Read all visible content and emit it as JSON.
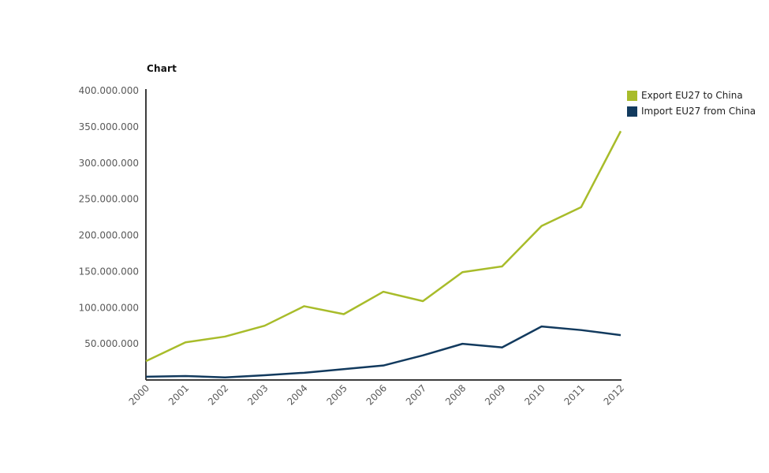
{
  "page": {
    "background": "#ffffff"
  },
  "header": {
    "title": "Chart"
  },
  "legend": {
    "items": [
      {
        "label": "Export EU27 to China",
        "color": "#a8bc2a"
      },
      {
        "label": "Import EU27 from China",
        "color": "#123a5e"
      }
    ]
  },
  "chart_data": {
    "type": "line",
    "title": "Chart",
    "xlabel": "",
    "ylabel": "",
    "categories": [
      "2000",
      "2001",
      "2002",
      "2003",
      "2004",
      "2005",
      "2006",
      "2007",
      "2008",
      "2009",
      "2010",
      "2011",
      "2012"
    ],
    "series": [
      {
        "name": "Export EU27 to China",
        "color": "#a8bc2a",
        "values": [
          26000000,
          52000000,
          60000000,
          75000000,
          102000000,
          91000000,
          122000000,
          109000000,
          149000000,
          157000000,
          213000000,
          239000000,
          344000000
        ]
      },
      {
        "name": "Import EU27 from China",
        "color": "#123a5e",
        "values": [
          4500000,
          5500000,
          3500000,
          6500000,
          10000000,
          15000000,
          20000000,
          34000000,
          50000000,
          45000000,
          74000000,
          69000000,
          62000000
        ]
      }
    ],
    "ylim": [
      0,
      400000000
    ],
    "y_ticks": [
      {
        "value": 50000000,
        "label": "50.000.000"
      },
      {
        "value": 100000000,
        "label": "100.000.000"
      },
      {
        "value": 150000000,
        "label": "150.000.000"
      },
      {
        "value": 200000000,
        "label": "200.000.000"
      },
      {
        "value": 250000000,
        "label": "250.000.000"
      },
      {
        "value": 300000000,
        "label": "300.000.000"
      },
      {
        "value": 350000000,
        "label": "350.000.000"
      },
      {
        "value": 400000000,
        "label": "400.000.000"
      }
    ],
    "grid": false,
    "legend_position": "top-right",
    "x_tick_rotation_deg": -45
  }
}
